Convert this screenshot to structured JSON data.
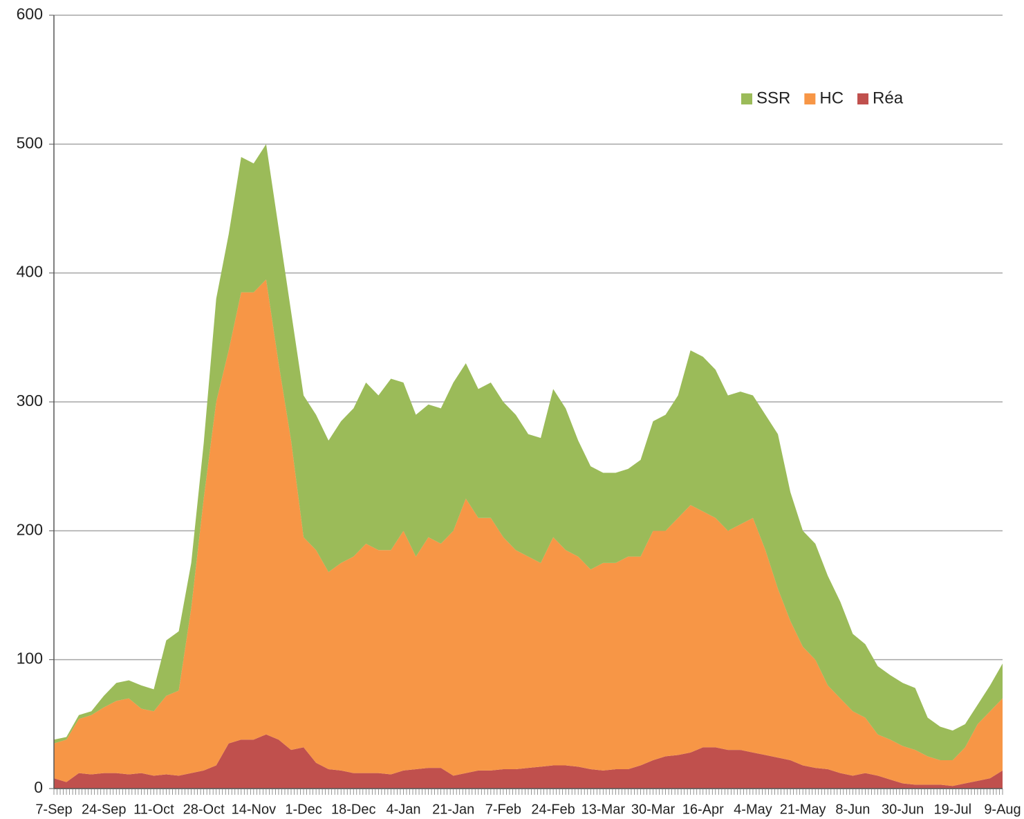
{
  "chart_data": {
    "type": "stacked-area",
    "categories": [
      "7-Sep",
      null,
      null,
      null,
      "24-Sep",
      null,
      null,
      null,
      "11-Oct",
      null,
      null,
      null,
      "28-Oct",
      null,
      null,
      null,
      "14-Nov",
      null,
      null,
      null,
      "1-Dec",
      null,
      null,
      null,
      "18-Dec",
      null,
      null,
      null,
      "4-Jan",
      null,
      null,
      null,
      "21-Jan",
      null,
      null,
      null,
      "7-Feb",
      null,
      null,
      null,
      "24-Feb",
      null,
      null,
      null,
      "13-Mar",
      null,
      null,
      null,
      "30-Mar",
      null,
      null,
      null,
      "16-Apr",
      null,
      null,
      null,
      "4-May",
      null,
      null,
      null,
      "21-May",
      null,
      null,
      null,
      "8-Jun",
      null,
      null,
      null,
      "30-Jun",
      null,
      null,
      null,
      "19-Jul",
      null,
      null,
      null,
      "9-Aug"
    ],
    "series": [
      {
        "name": "SSR",
        "color": "#9bbb59",
        "values": [
          3,
          2,
          3,
          3,
          9,
          14,
          14,
          18,
          17,
          43,
          46,
          35,
          43,
          80,
          90,
          105,
          100,
          105,
          105,
          100,
          110,
          105,
          102,
          110,
          115,
          125,
          120,
          133,
          115,
          110,
          103,
          105,
          115,
          105,
          100,
          105,
          105,
          105,
          95,
          97,
          115,
          110,
          90,
          80,
          70,
          70,
          68,
          75,
          85,
          90,
          95,
          120,
          120,
          115,
          105,
          103,
          95,
          105,
          120,
          100,
          90,
          90,
          85,
          75,
          60,
          57,
          53,
          50,
          49,
          48,
          30,
          26,
          23,
          18,
          15,
          20,
          27
        ]
      },
      {
        "name": "HC",
        "color": "#f79646",
        "values": [
          27,
          33,
          42,
          46,
          51,
          56,
          59,
          50,
          50,
          61,
          66,
          128,
          211,
          282,
          305,
          347,
          347,
          353,
          292,
          240,
          163,
          165,
          153,
          161,
          168,
          178,
          173,
          174,
          186,
          165,
          179,
          174,
          190,
          213,
          196,
          196,
          180,
          170,
          164,
          158,
          177,
          167,
          163,
          155,
          161,
          160,
          165,
          162,
          178,
          175,
          184,
          192,
          183,
          178,
          170,
          175,
          182,
          159,
          131,
          108,
          92,
          84,
          65,
          58,
          50,
          43,
          32,
          31,
          29,
          27,
          22,
          19,
          20,
          28,
          44,
          52,
          56
        ]
      },
      {
        "name": "Réa",
        "color": "#c0504d",
        "values": [
          8,
          5,
          12,
          11,
          12,
          12,
          11,
          12,
          10,
          11,
          10,
          12,
          14,
          18,
          35,
          38,
          38,
          42,
          38,
          30,
          32,
          20,
          15,
          14,
          12,
          12,
          12,
          11,
          14,
          15,
          16,
          16,
          10,
          12,
          14,
          14,
          15,
          15,
          16,
          17,
          18,
          18,
          17,
          15,
          14,
          15,
          15,
          18,
          22,
          25,
          26,
          28,
          32,
          32,
          30,
          30,
          28,
          26,
          24,
          22,
          18,
          16,
          15,
          12,
          10,
          12,
          10,
          7,
          4,
          3,
          3,
          3,
          2,
          4,
          6,
          8,
          14
        ]
      }
    ],
    "ylim": [
      0,
      600
    ],
    "yticks": [
      0,
      100,
      200,
      300,
      400,
      500,
      600
    ],
    "grid": true,
    "legend": "upper right"
  }
}
